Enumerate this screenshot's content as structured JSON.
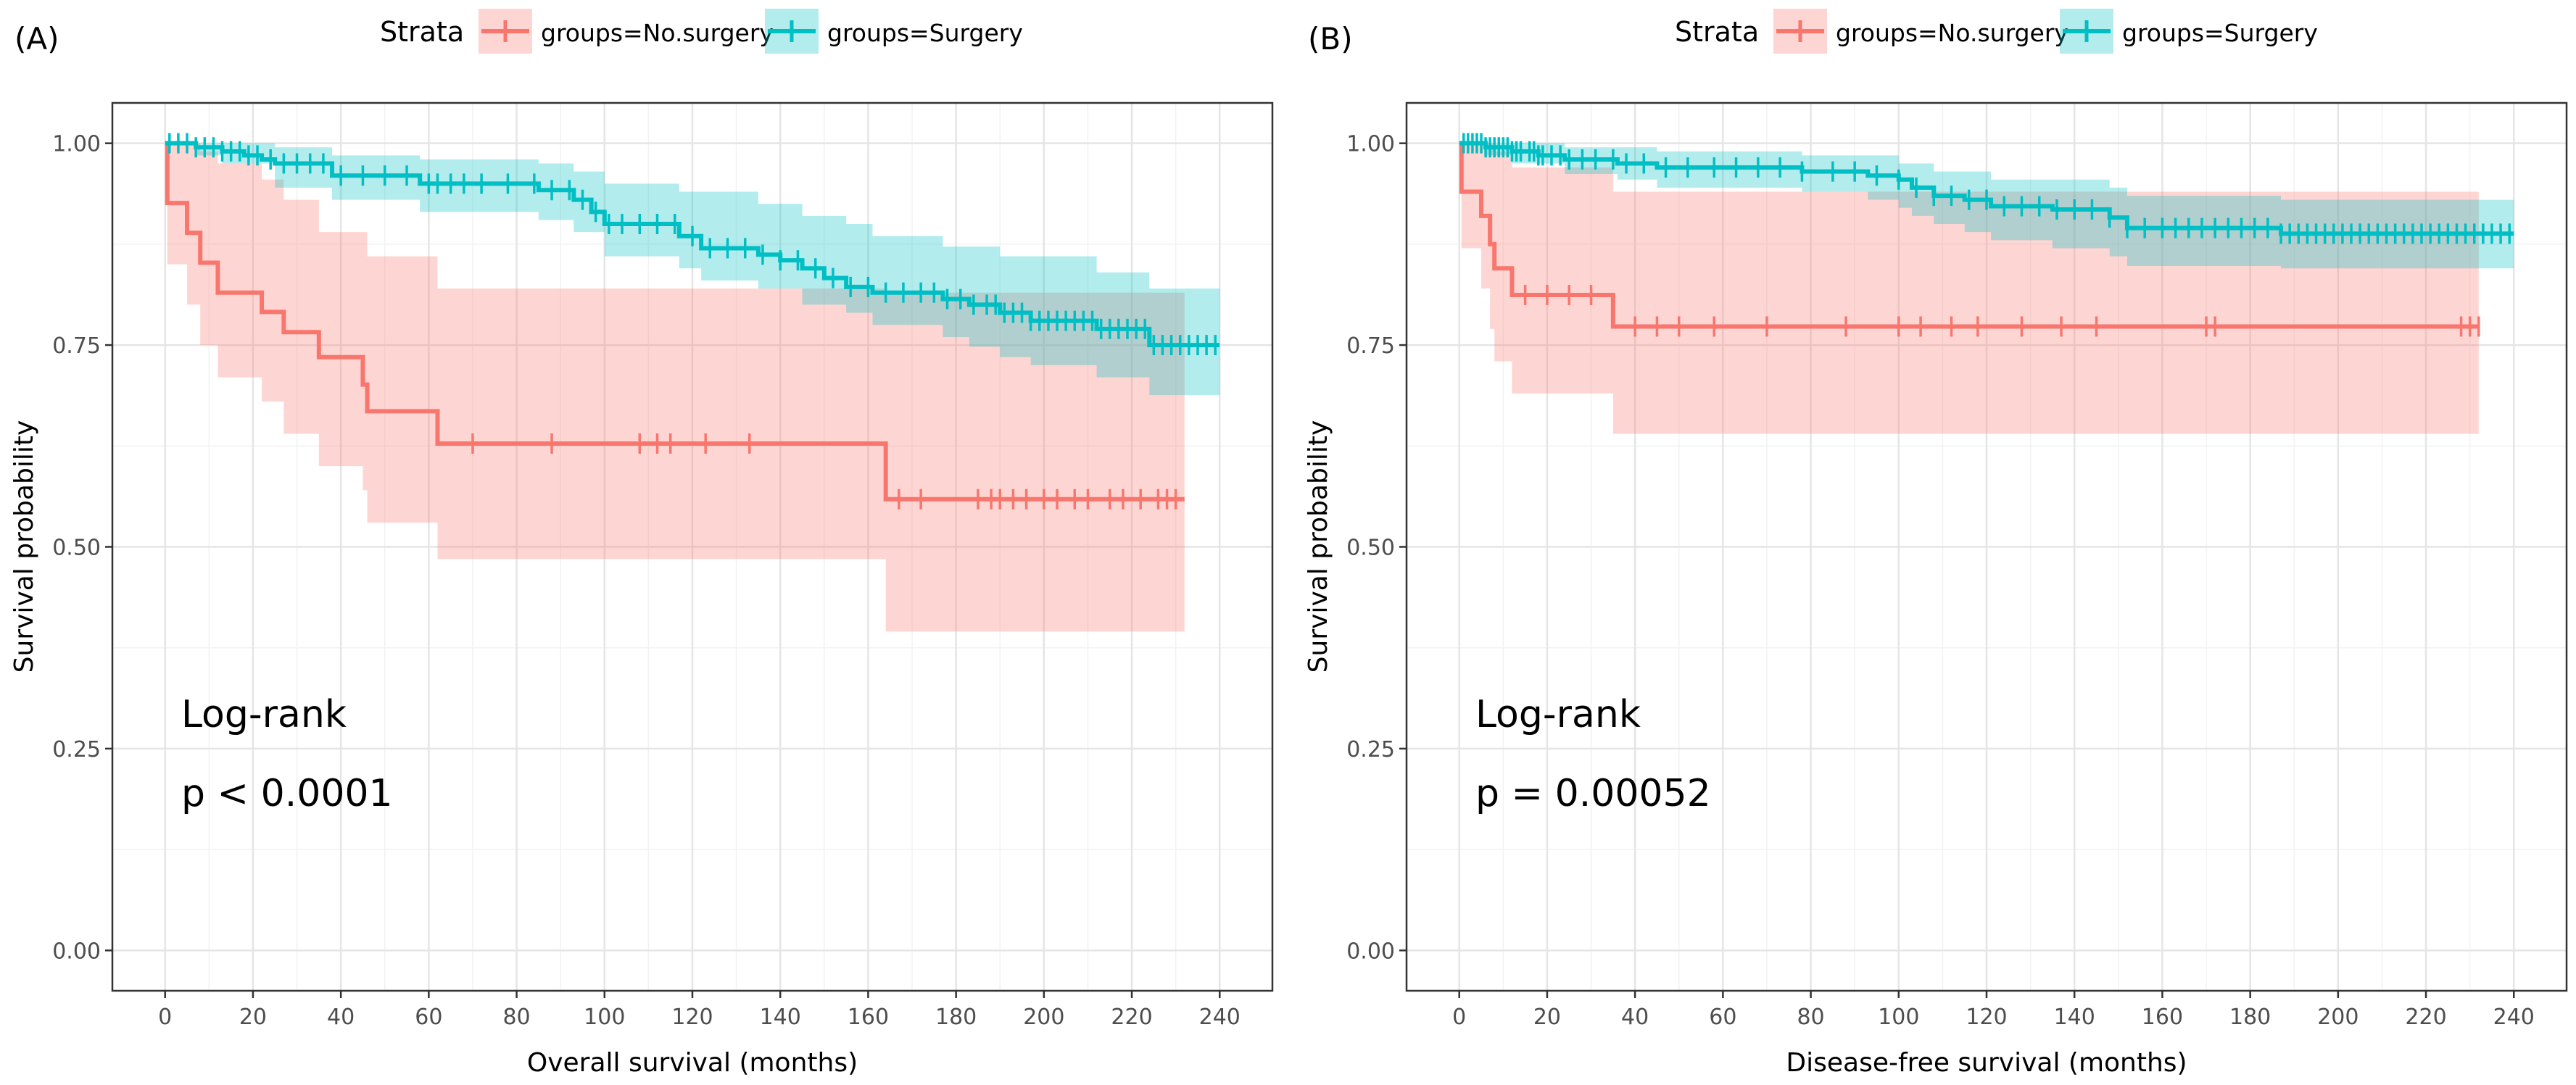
{
  "chart_data": [
    {
      "panel_label": "(A)",
      "type": "line",
      "subtype": "kaplan-meier",
      "title": "",
      "xlabel": "Overall survival (months)",
      "ylabel": "Survival probability",
      "xlim": [
        -12,
        252
      ],
      "ylim": [
        -0.05,
        1.05
      ],
      "xticks": [
        "0",
        "20",
        "40",
        "60",
        "80",
        "100",
        "120",
        "140",
        "160",
        "180",
        "200",
        "220",
        "240"
      ],
      "xtick_values": [
        0,
        20,
        40,
        60,
        80,
        100,
        120,
        140,
        160,
        180,
        200,
        220,
        240
      ],
      "yticks": [
        "0.00",
        "0.25",
        "0.50",
        "0.75",
        "1.00"
      ],
      "ytick_values": [
        0,
        0.25,
        0.5,
        0.75,
        1
      ],
      "grid": true,
      "legend": {
        "title": "Strata",
        "placement": "top",
        "entries": [
          "groups=No.surgery",
          "groups=Surgery"
        ]
      },
      "annotation": {
        "line1": "Log-rank",
        "line2": "p < 0.0001"
      },
      "series": [
        {
          "name": "groups=No.surgery",
          "color": "#F8766D",
          "steps": [
            [
              0,
              1.0
            ],
            [
              0.5,
              0.926
            ],
            [
              5,
              0.889
            ],
            [
              8,
              0.852
            ],
            [
              12,
              0.815
            ],
            [
              22,
              0.791
            ],
            [
              27,
              0.766
            ],
            [
              35,
              0.735
            ],
            [
              45,
              0.701
            ],
            [
              46,
              0.668
            ],
            [
              62,
              0.628
            ],
            [
              164,
              0.559
            ],
            [
              232,
              0.559
            ]
          ],
          "ci_upper": [
            [
              0,
              1.0
            ],
            [
              0.5,
              1.0
            ],
            [
              5,
              1.0
            ],
            [
              8,
              0.99
            ],
            [
              12,
              0.975
            ],
            [
              22,
              0.955
            ],
            [
              27,
              0.93
            ],
            [
              35,
              0.89
            ],
            [
              46,
              0.86
            ],
            [
              62,
              0.82
            ],
            [
              164,
              0.815
            ],
            [
              232,
              0.79
            ]
          ],
          "ci_lower": [
            [
              0,
              1.0
            ],
            [
              0.5,
              0.85
            ],
            [
              5,
              0.8
            ],
            [
              8,
              0.75
            ],
            [
              12,
              0.71
            ],
            [
              22,
              0.68
            ],
            [
              27,
              0.64
            ],
            [
              35,
              0.6
            ],
            [
              45,
              0.57
            ],
            [
              46,
              0.53
            ],
            [
              62,
              0.485
            ],
            [
              164,
              0.395
            ],
            [
              232,
              0.395
            ]
          ],
          "censor_times": [
            70,
            88,
            108,
            112,
            115,
            123,
            133,
            167,
            172,
            185,
            188,
            190,
            193,
            196,
            200,
            203,
            207,
            210,
            215,
            218,
            222,
            226,
            228,
            230
          ]
        },
        {
          "name": "groups=Surgery",
          "color": "#00BFC4",
          "steps": [
            [
              0,
              1.0
            ],
            [
              7,
              0.995
            ],
            [
              13,
              0.99
            ],
            [
              18,
              0.985
            ],
            [
              22,
              0.98
            ],
            [
              25,
              0.975
            ],
            [
              38,
              0.96
            ],
            [
              58,
              0.95
            ],
            [
              85,
              0.942
            ],
            [
              93,
              0.93
            ],
            [
              97,
              0.915
            ],
            [
              100,
              0.9
            ],
            [
              117,
              0.885
            ],
            [
              122,
              0.87
            ],
            [
              135,
              0.862
            ],
            [
              140,
              0.855
            ],
            [
              145,
              0.845
            ],
            [
              150,
              0.833
            ],
            [
              155,
              0.822
            ],
            [
              161,
              0.815
            ],
            [
              177,
              0.807
            ],
            [
              183,
              0.8
            ],
            [
              190,
              0.79
            ],
            [
              197,
              0.78
            ],
            [
              212,
              0.77
            ],
            [
              224,
              0.75
            ],
            [
              240,
              0.75
            ]
          ],
          "ci_upper": [
            [
              0,
              1.0
            ],
            [
              25,
              0.995
            ],
            [
              38,
              0.985
            ],
            [
              58,
              0.98
            ],
            [
              85,
              0.975
            ],
            [
              93,
              0.965
            ],
            [
              100,
              0.95
            ],
            [
              117,
              0.94
            ],
            [
              135,
              0.925
            ],
            [
              145,
              0.91
            ],
            [
              155,
              0.9
            ],
            [
              161,
              0.885
            ],
            [
              177,
              0.872
            ],
            [
              190,
              0.86
            ],
            [
              212,
              0.84
            ],
            [
              224,
              0.82
            ],
            [
              240,
              0.82
            ]
          ],
          "ci_lower": [
            [
              0,
              1.0
            ],
            [
              7,
              0.985
            ],
            [
              13,
              0.975
            ],
            [
              25,
              0.945
            ],
            [
              38,
              0.93
            ],
            [
              58,
              0.915
            ],
            [
              85,
              0.905
            ],
            [
              93,
              0.89
            ],
            [
              100,
              0.86
            ],
            [
              117,
              0.845
            ],
            [
              122,
              0.83
            ],
            [
              135,
              0.82
            ],
            [
              145,
              0.8
            ],
            [
              155,
              0.79
            ],
            [
              161,
              0.775
            ],
            [
              177,
              0.76
            ],
            [
              183,
              0.748
            ],
            [
              190,
              0.735
            ],
            [
              197,
              0.725
            ],
            [
              212,
              0.71
            ],
            [
              224,
              0.688
            ],
            [
              240,
              0.688
            ]
          ],
          "censor_times": [
            1,
            3,
            5,
            7,
            9,
            11,
            13,
            15,
            17,
            19,
            21,
            24,
            27,
            30,
            33,
            36,
            40,
            45,
            50,
            55,
            60,
            62,
            65,
            68,
            72,
            78,
            84,
            88,
            92,
            95,
            98,
            101,
            104,
            108,
            112,
            116,
            120,
            124,
            128,
            132,
            136,
            140,
            144,
            148,
            152,
            156,
            160,
            164,
            168,
            172,
            175,
            178,
            181,
            184,
            187,
            189,
            191,
            193,
            195,
            197,
            199,
            201,
            203,
            205,
            207,
            209,
            211,
            213,
            215,
            217,
            219,
            221,
            223,
            225,
            227,
            229,
            231,
            233,
            235,
            237,
            239
          ]
        }
      ]
    },
    {
      "panel_label": "(B)",
      "type": "line",
      "subtype": "kaplan-meier",
      "title": "",
      "xlabel": "Disease-free survival (months)",
      "ylabel": "Survival probability",
      "xlim": [
        -12,
        252
      ],
      "ylim": [
        -0.05,
        1.05
      ],
      "xticks": [
        "0",
        "20",
        "40",
        "60",
        "80",
        "100",
        "120",
        "140",
        "160",
        "180",
        "200",
        "220",
        "240"
      ],
      "xtick_values": [
        0,
        20,
        40,
        60,
        80,
        100,
        120,
        140,
        160,
        180,
        200,
        220,
        240
      ],
      "yticks": [
        "0.00",
        "0.25",
        "0.50",
        "0.75",
        "1.00"
      ],
      "ytick_values": [
        0,
        0.25,
        0.5,
        0.75,
        1
      ],
      "grid": true,
      "legend": {
        "title": "Strata",
        "placement": "top",
        "entries": [
          "groups=No.surgery",
          "groups=Surgery"
        ]
      },
      "annotation": {
        "line1": "Log-rank",
        "line2": "p = 0.00052"
      },
      "series": [
        {
          "name": "groups=No.surgery",
          "color": "#F8766D",
          "steps": [
            [
              0,
              1.0
            ],
            [
              0.5,
              0.94
            ],
            [
              5,
              0.91
            ],
            [
              7,
              0.875
            ],
            [
              8,
              0.845
            ],
            [
              12,
              0.812
            ],
            [
              35,
              0.773
            ],
            [
              232,
              0.773
            ]
          ],
          "ci_upper": [
            [
              0,
              1.0
            ],
            [
              0.5,
              1.0
            ],
            [
              5,
              1.0
            ],
            [
              8,
              0.99
            ],
            [
              12,
              0.97
            ],
            [
              35,
              0.94
            ],
            [
              232,
              0.94
            ]
          ],
          "ci_lower": [
            [
              0,
              1.0
            ],
            [
              0.5,
              0.87
            ],
            [
              5,
              0.82
            ],
            [
              7,
              0.77
            ],
            [
              8,
              0.73
            ],
            [
              12,
              0.69
            ],
            [
              35,
              0.64
            ],
            [
              232,
              0.64
            ]
          ],
          "censor_times": [
            15,
            20,
            25,
            30,
            40,
            45,
            50,
            58,
            70,
            88,
            100,
            105,
            112,
            118,
            128,
            137,
            145,
            170,
            172,
            228,
            230,
            232
          ]
        },
        {
          "name": "groups=Surgery",
          "color": "#00BFC4",
          "steps": [
            [
              0,
              1.0
            ],
            [
              6,
              0.995
            ],
            [
              12,
              0.99
            ],
            [
              18,
              0.985
            ],
            [
              24,
              0.98
            ],
            [
              36,
              0.975
            ],
            [
              45,
              0.97
            ],
            [
              78,
              0.965
            ],
            [
              93,
              0.96
            ],
            [
              100,
              0.955
            ],
            [
              103,
              0.945
            ],
            [
              108,
              0.935
            ],
            [
              115,
              0.93
            ],
            [
              121,
              0.922
            ],
            [
              135,
              0.918
            ],
            [
              148,
              0.908
            ],
            [
              152,
              0.895
            ],
            [
              187,
              0.888
            ],
            [
              240,
              0.888
            ]
          ],
          "ci_upper": [
            [
              0,
              1.0
            ],
            [
              24,
              0.995
            ],
            [
              45,
              0.99
            ],
            [
              78,
              0.985
            ],
            [
              100,
              0.975
            ],
            [
              108,
              0.965
            ],
            [
              121,
              0.955
            ],
            [
              148,
              0.945
            ],
            [
              152,
              0.935
            ],
            [
              187,
              0.93
            ],
            [
              240,
              0.93
            ]
          ],
          "ci_lower": [
            [
              0,
              1.0
            ],
            [
              6,
              0.985
            ],
            [
              12,
              0.975
            ],
            [
              24,
              0.962
            ],
            [
              36,
              0.955
            ],
            [
              45,
              0.945
            ],
            [
              78,
              0.94
            ],
            [
              93,
              0.93
            ],
            [
              100,
              0.92
            ],
            [
              103,
              0.91
            ],
            [
              108,
              0.9
            ],
            [
              115,
              0.89
            ],
            [
              121,
              0.88
            ],
            [
              135,
              0.87
            ],
            [
              148,
              0.86
            ],
            [
              152,
              0.848
            ],
            [
              187,
              0.845
            ],
            [
              240,
              0.845
            ]
          ],
          "censor_times": [
            1,
            2,
            3,
            4,
            5,
            6,
            7,
            8,
            9,
            10,
            11,
            12,
            13,
            14,
            16,
            17,
            18,
            19,
            21,
            23,
            25,
            28,
            31,
            35,
            38,
            42,
            47,
            52,
            58,
            63,
            68,
            73,
            78,
            85,
            90,
            95,
            100,
            104,
            108,
            112,
            116,
            120,
            124,
            128,
            132,
            136,
            140,
            144,
            148,
            152,
            156,
            160,
            163,
            166,
            169,
            172,
            175,
            178,
            181,
            184,
            187,
            189,
            191,
            193,
            195,
            197,
            199,
            201,
            203,
            205,
            207,
            209,
            211,
            213,
            215,
            217,
            219,
            221,
            223,
            225,
            227,
            229,
            231,
            233,
            235,
            237,
            239
          ]
        }
      ]
    }
  ]
}
